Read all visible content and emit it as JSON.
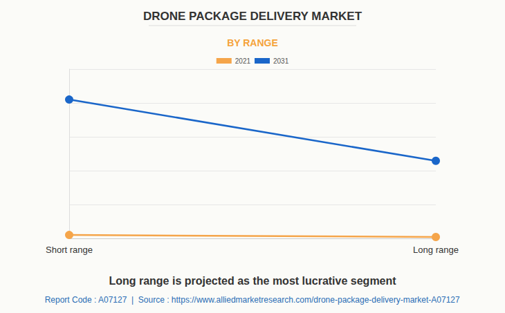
{
  "chart_data": {
    "type": "line",
    "title": "DRONE PACKAGE DELIVERY MARKET",
    "subtitle": "BY RANGE",
    "annotations": [
      "Long range is projected as the most lucrative segment",
      "Report Code : A07127  |  Source : https://www.alliedmarketresearch.com/drone-package-delivery-market-A07127"
    ],
    "categories": [
      "Short range",
      "Long range"
    ],
    "series": [
      {
        "name": "2021",
        "color": "#f5a54a",
        "values": [
          0.1,
          0.04
        ]
      },
      {
        "name": "2031",
        "color": "#1a66c9",
        "values": [
          4.1,
          2.29
        ]
      }
    ],
    "ylim": [
      0,
      5
    ],
    "yticks": [
      0,
      1,
      2,
      3,
      4,
      5
    ],
    "grid": true,
    "legend": "top",
    "marker": "circle",
    "tick_labels": "x"
  }
}
